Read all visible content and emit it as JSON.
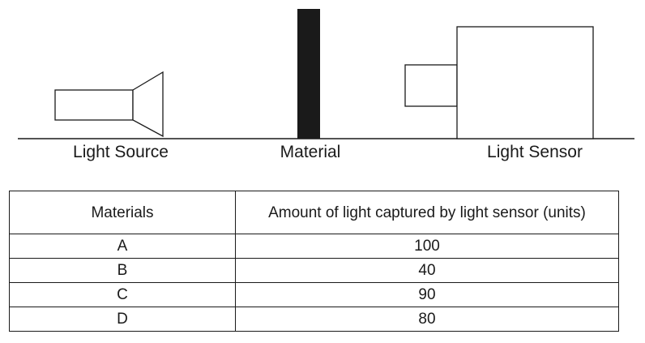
{
  "diagram": {
    "labels": {
      "light_source": "Light Source",
      "material": "Material",
      "light_sensor": "Light Sensor"
    }
  },
  "table": {
    "headers": {
      "materials": "Materials",
      "amount": "Amount of light captured by light sensor (units)"
    },
    "rows": [
      {
        "material": "A",
        "amount": "100"
      },
      {
        "material": "B",
        "amount": "40"
      },
      {
        "material": "C",
        "amount": "90"
      },
      {
        "material": "D",
        "amount": "80"
      }
    ]
  },
  "colors": {
    "ink": "#1a1a1a",
    "background": "#ffffff"
  }
}
